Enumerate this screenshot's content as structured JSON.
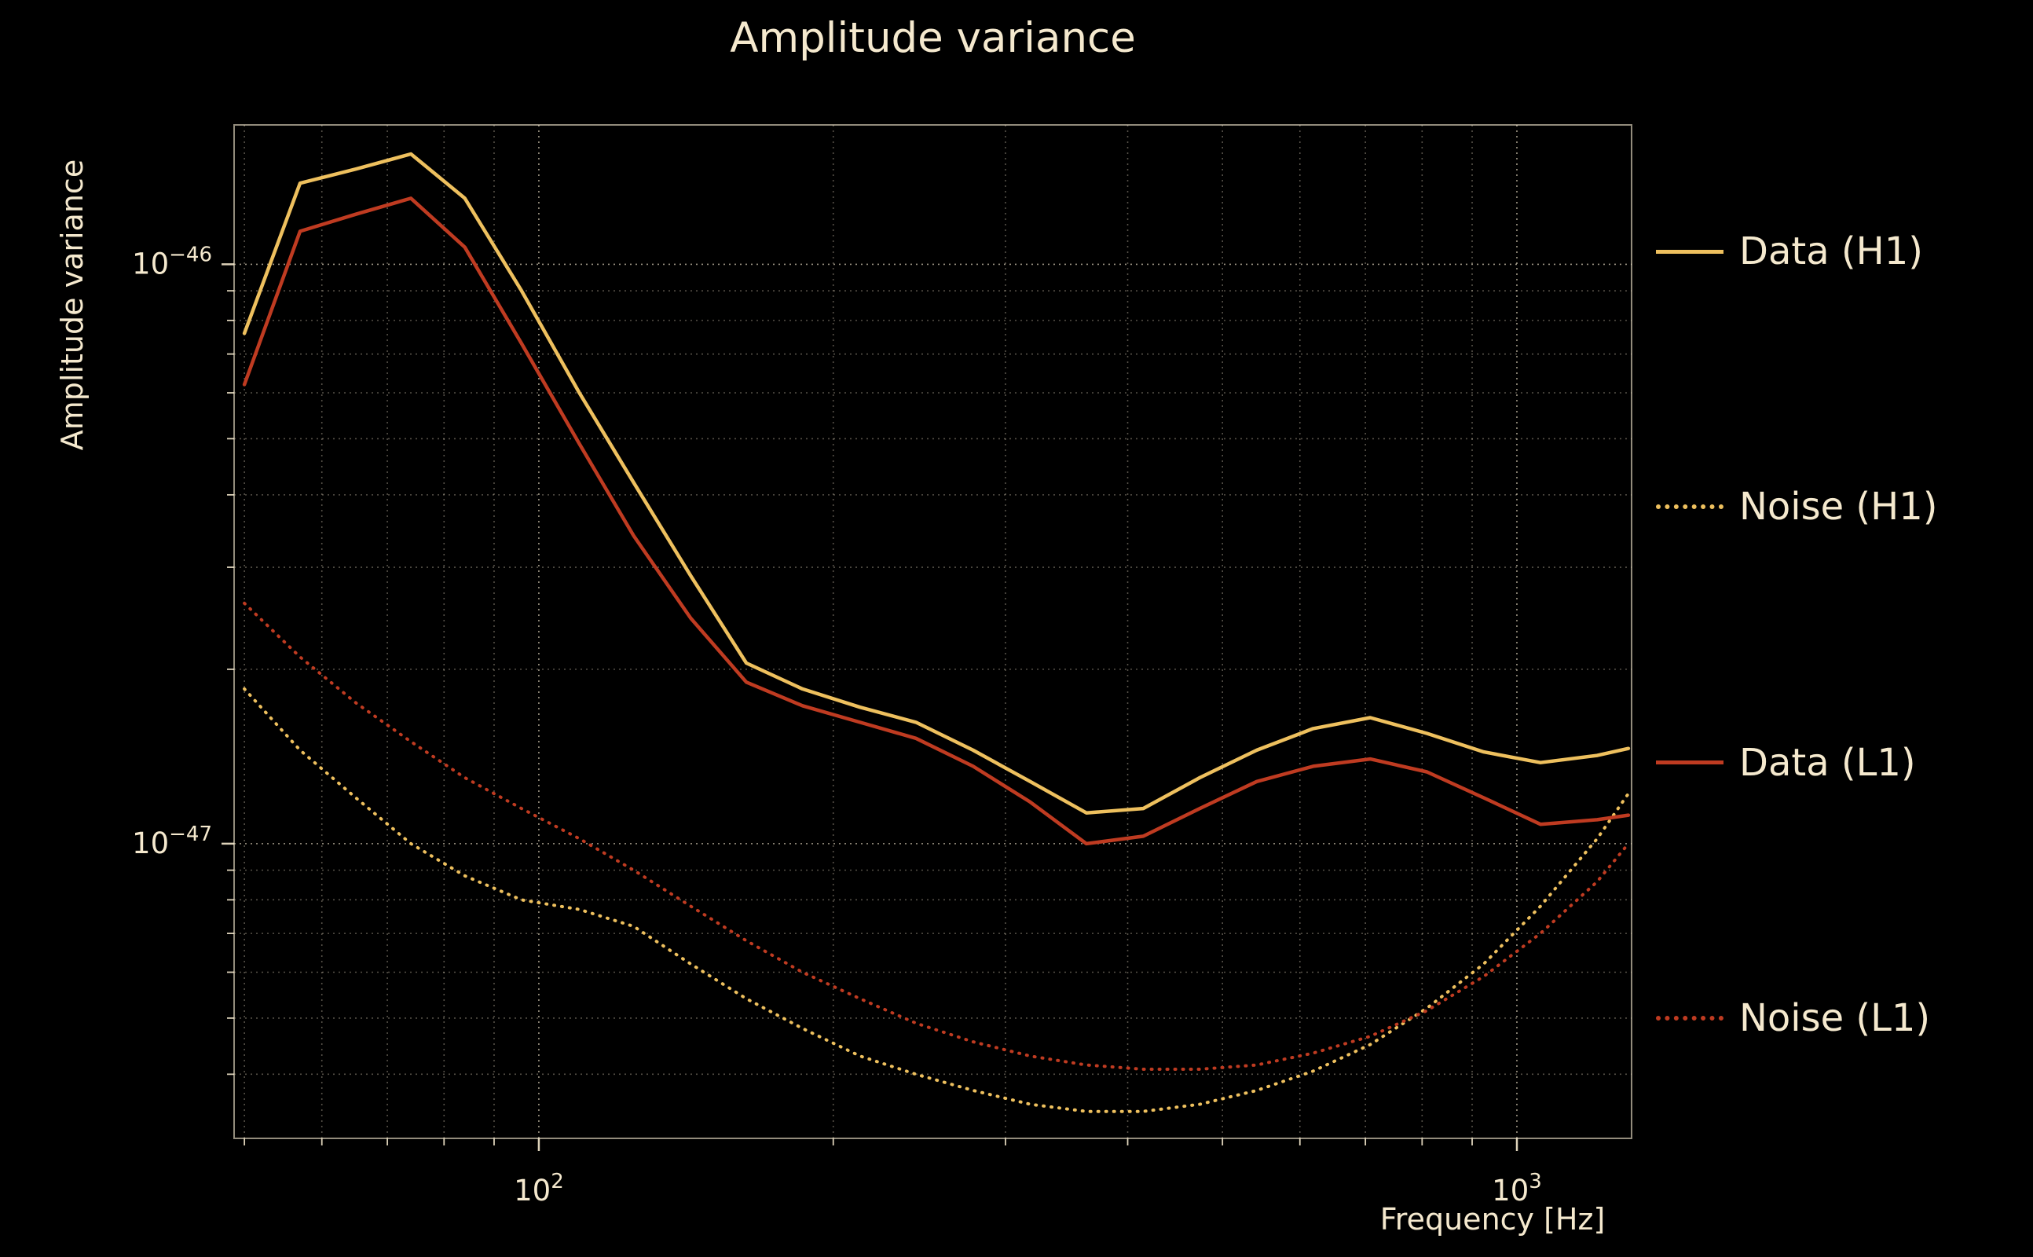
{
  "title": "Amplitude variance",
  "chart_data": {
    "type": "line",
    "title": "Amplitude variance",
    "xlabel": "Frequency [Hz]",
    "ylabel": "Amplitude variance",
    "x_scale": "log",
    "y_scale": "log",
    "xlim": [
      48.8,
      1310
    ],
    "ylim": [
      3.1e-48,
      1.74e-46
    ],
    "grid": true,
    "legend_position": "right-outside",
    "background_color": "#000000",
    "text_color": "#f5e9ce",
    "grid_color": "#f5e9ce",
    "x_ticks": [
      {
        "value": 100,
        "base": "10",
        "exp": "2"
      },
      {
        "value": 1000,
        "base": "10",
        "exp": "3"
      }
    ],
    "y_ticks": [
      {
        "value": 1e-46,
        "base": "10",
        "exp": "−46"
      },
      {
        "value": 1e-47,
        "base": "10",
        "exp": "−47"
      }
    ],
    "x": [
      50,
      57,
      65,
      74,
      84,
      96,
      110,
      125,
      143,
      163,
      186,
      213,
      243,
      278,
      318,
      363,
      415,
      474,
      542,
      619,
      708,
      809,
      925,
      1057,
      1208,
      1300
    ],
    "series": [
      {
        "name": "Data (H1)",
        "color": "#eec05e",
        "style": "solid",
        "values": [
          7.6e-47,
          1.38e-46,
          1.46e-46,
          1.55e-46,
          1.3e-46,
          9e-47,
          6e-47,
          4.2e-47,
          2.9e-47,
          2.05e-47,
          1.85e-47,
          1.72e-47,
          1.62e-47,
          1.45e-47,
          1.28e-47,
          1.13e-47,
          1.15e-47,
          1.3e-47,
          1.45e-47,
          1.58e-47,
          1.65e-47,
          1.55e-47,
          1.44e-47,
          1.38e-47,
          1.42e-47,
          1.46e-47
        ]
      },
      {
        "name": "Noise (H1)",
        "color": "#eec05e",
        "style": "dotted",
        "values": [
          1.85e-47,
          1.45e-47,
          1.2e-47,
          1e-47,
          8.8e-48,
          8e-48,
          7.7e-48,
          7.2e-48,
          6.2e-48,
          5.4e-48,
          4.8e-48,
          4.3e-48,
          4e-48,
          3.75e-48,
          3.55e-48,
          3.45e-48,
          3.45e-48,
          3.55e-48,
          3.75e-48,
          4.05e-48,
          4.5e-48,
          5.2e-48,
          6.2e-48,
          7.8e-48,
          1.02e-47,
          1.22e-47
        ]
      },
      {
        "name": "Data (L1)",
        "color": "#bf3b21",
        "style": "solid",
        "values": [
          6.2e-47,
          1.14e-46,
          1.22e-46,
          1.3e-46,
          1.07e-46,
          7.3e-47,
          4.9e-47,
          3.4e-47,
          2.45e-47,
          1.9e-47,
          1.73e-47,
          1.62e-47,
          1.52e-47,
          1.36e-47,
          1.18e-47,
          1e-47,
          1.03e-47,
          1.15e-47,
          1.28e-47,
          1.36e-47,
          1.4e-47,
          1.33e-47,
          1.2e-47,
          1.08e-47,
          1.1e-47,
          1.12e-47
        ]
      },
      {
        "name": "Noise (L1)",
        "color": "#bf3b21",
        "style": "dotted",
        "values": [
          2.6e-47,
          2.1e-47,
          1.75e-47,
          1.5e-47,
          1.3e-47,
          1.15e-47,
          1.02e-47,
          9e-48,
          7.8e-48,
          6.8e-48,
          6e-48,
          5.4e-48,
          4.9e-48,
          4.55e-48,
          4.3e-48,
          4.15e-48,
          4.08e-48,
          4.08e-48,
          4.15e-48,
          4.35e-48,
          4.65e-48,
          5.15e-48,
          5.9e-48,
          7e-48,
          8.6e-48,
          1e-47
        ]
      }
    ]
  }
}
